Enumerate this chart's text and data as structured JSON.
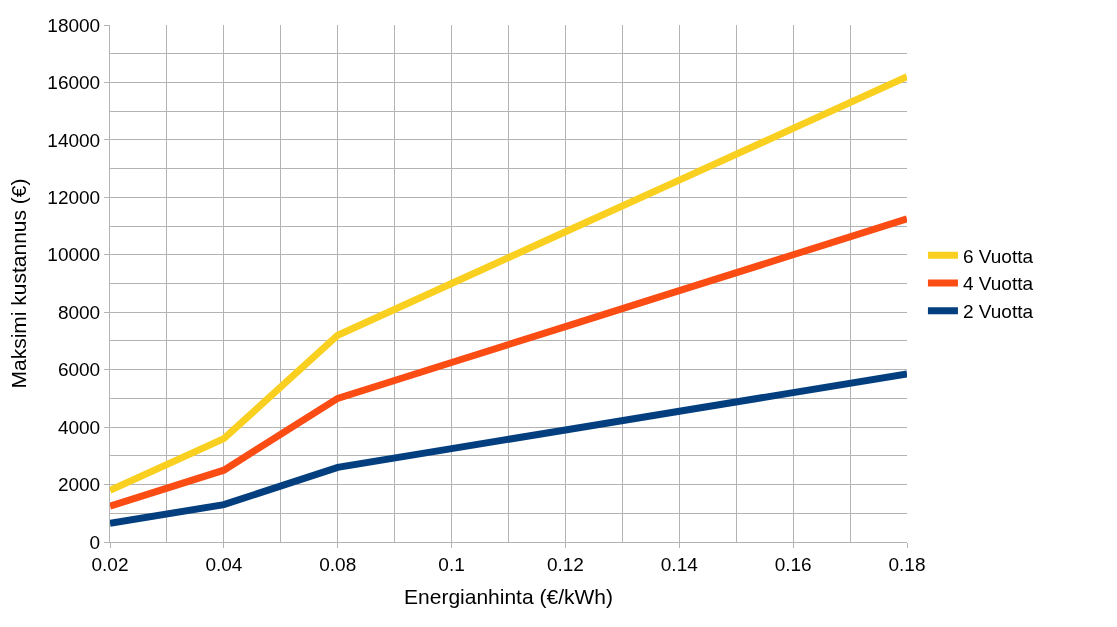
{
  "chart_data": {
    "type": "line",
    "xlabel": "Energianhinta (€/kWh)",
    "ylabel": "Maksimi kustannus (€)",
    "categories": [
      "0.02",
      "0.04",
      "0.08",
      "0.1",
      "0.12",
      "0.14",
      "0.16",
      "0.18"
    ],
    "series": [
      {
        "name": "6 Vuotta",
        "color": "#f9d01f",
        "values": [
          1800,
          3600,
          7200,
          9000,
          10800,
          12600,
          14400,
          16200
        ]
      },
      {
        "name": "4 Vuotta",
        "color": "#fb4c14",
        "values": [
          1250,
          2500,
          5000,
          6250,
          7500,
          8750,
          10000,
          11250
        ]
      },
      {
        "name": "2 Vuotta",
        "color": "#033e7e",
        "values": [
          650,
          1300,
          2600,
          3250,
          3900,
          4550,
          5200,
          5850
        ]
      }
    ],
    "ylim": [
      0,
      18000
    ],
    "yticks": [
      0,
      2000,
      4000,
      6000,
      8000,
      10000,
      12000,
      14000,
      16000,
      18000
    ],
    "grid": true,
    "legend": "right",
    "marker": "none",
    "line_style": "solid"
  }
}
